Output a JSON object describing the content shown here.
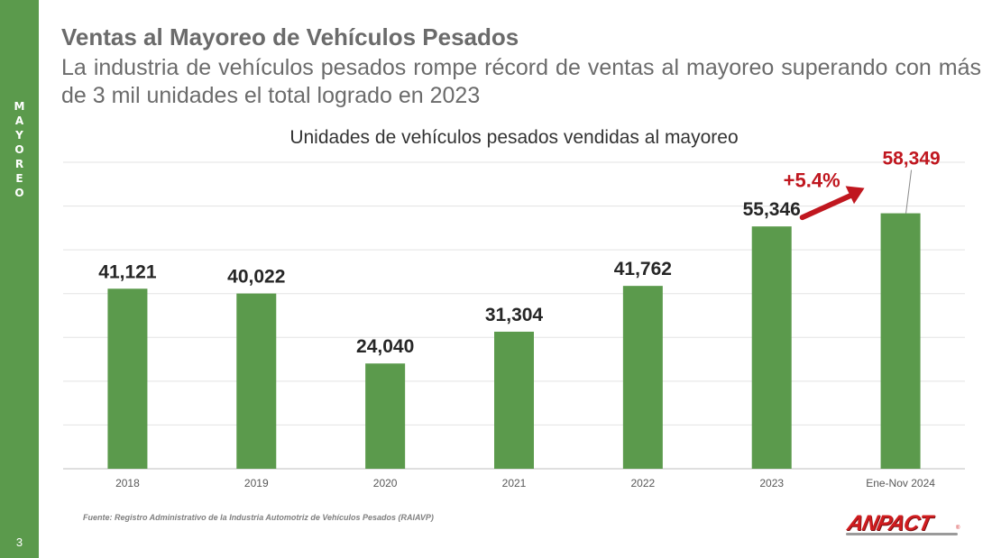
{
  "sidebar": {
    "letters": [
      "M",
      "A",
      "Y",
      "O",
      "R",
      "E",
      "O"
    ],
    "page_number": "3"
  },
  "header": {
    "title": "Ventas al Mayoreo de Vehículos Pesados",
    "subtitle": "La industria de vehículos pesados rompe récord de ventas al mayoreo superando con más de 3 mil unidades el total logrado en 2023"
  },
  "colors": {
    "brand_green": "#5b9a4c",
    "bar_green": "#5b9a4c",
    "accent_red": "#c0171f",
    "text_gray": "#6b6b6b"
  },
  "chart_data": {
    "type": "bar",
    "title": "Unidades de vehículos pesados vendidas al mayoreo",
    "categories": [
      "2018",
      "2019",
      "2020",
      "2021",
      "2022",
      "2023",
      "Ene-Nov 2024"
    ],
    "values": [
      41121,
      40022,
      24040,
      31304,
      41762,
      55346,
      58349
    ],
    "data_labels": [
      "41,121",
      "40,022",
      "24,040",
      "31,304",
      "41,762",
      "55,346",
      "58,349"
    ],
    "highlight_index": 6,
    "ylim": [
      0,
      70000
    ],
    "grid": true,
    "annotation": {
      "text": "+5.4%",
      "from": "2023",
      "to": "Ene-Nov 2024"
    }
  },
  "footer": {
    "source": "Fuente: Registro Administrativo de la Industria Automotriz de Vehículos Pesados (RAIAVP)",
    "logo_text": "ANPACT",
    "logo_mark": "®"
  }
}
